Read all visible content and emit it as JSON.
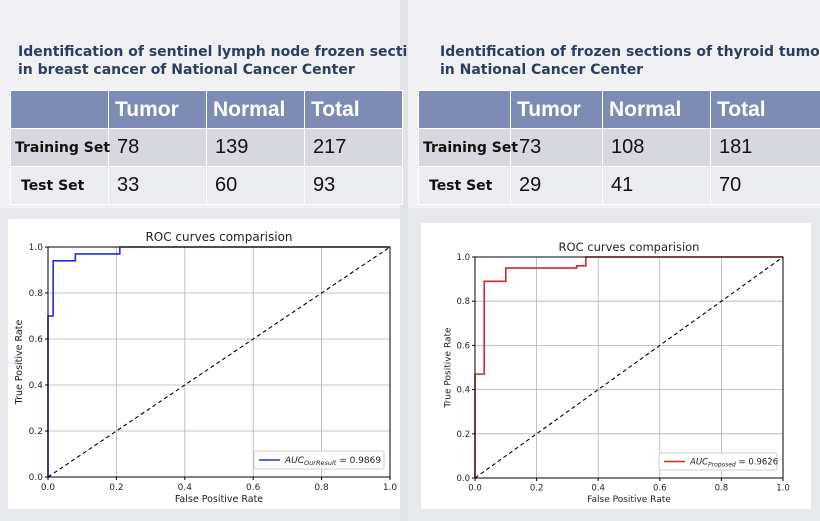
{
  "left": {
    "title_line1": "Identification of sentinel lymph node frozen section",
    "title_line2": "in breast cancer of National Cancer Center",
    "table": {
      "headers": [
        "",
        "Tumor",
        "Normal",
        "Total"
      ],
      "rows": [
        {
          "label": "Training Set",
          "cells": [
            "78",
            "139",
            "217"
          ]
        },
        {
          "label": "Test Set",
          "cells": [
            "33",
            "60",
            "93"
          ]
        }
      ]
    }
  },
  "right": {
    "title_line1": "Identification of frozen sections of thyroid tumor",
    "title_line2": "in National Cancer Center",
    "table": {
      "headers": [
        "",
        "Tumor",
        "Normal",
        "Total"
      ],
      "rows": [
        {
          "label": "Training Set",
          "cells": [
            "73",
            "108",
            "181"
          ]
        },
        {
          "label": "Test Set",
          "cells": [
            "29",
            "41",
            "70"
          ]
        }
      ]
    }
  },
  "colors": {
    "header_bg": "#7e8bb5",
    "title_text": "#2c3e5e",
    "left_curve": "#1f2fd6",
    "right_curve": "#d62728"
  },
  "chart_data": [
    {
      "type": "line",
      "title": "ROC curves comparision",
      "xlabel": "False Positive Rate",
      "ylabel": "True Positive Rate",
      "xlim": [
        0.0,
        1.0
      ],
      "ylim": [
        0.0,
        1.0
      ],
      "xticks": [
        "0.0",
        "0.2",
        "0.4",
        "0.6",
        "0.8",
        "1.0"
      ],
      "yticks": [
        "0.0",
        "0.2",
        "0.4",
        "0.6",
        "0.8",
        "1.0"
      ],
      "grid": true,
      "legend_position": "lower-right",
      "series": [
        {
          "legend_symbol": "AUC",
          "legend_subscript": "OurResult",
          "legend_value": " = 0.9869",
          "color": "#1f2fd6",
          "x": [
            0.0,
            0.0,
            0.015,
            0.015,
            0.08,
            0.08,
            0.21,
            0.21,
            1.0
          ],
          "y": [
            0.0,
            0.7,
            0.7,
            0.94,
            0.94,
            0.97,
            0.97,
            1.0,
            1.0
          ]
        },
        {
          "name": "Chance diagonal",
          "color": "#000000",
          "dashed": true,
          "x": [
            0.0,
            1.0
          ],
          "y": [
            0.0,
            1.0
          ]
        }
      ]
    },
    {
      "type": "line",
      "title": "ROC curves comparision",
      "xlabel": "False Positive Rate",
      "ylabel": "True Positive Rate",
      "xlim": [
        0.0,
        1.0
      ],
      "ylim": [
        0.0,
        1.0
      ],
      "xticks": [
        "0.0",
        "0.2",
        "0.4",
        "0.6",
        "0.8",
        "1.0"
      ],
      "yticks": [
        "0.0",
        "0.2",
        "0.4",
        "0.6",
        "0.8",
        "1.0"
      ],
      "grid": true,
      "legend_position": "lower-right",
      "series": [
        {
          "legend_symbol": "AUC",
          "legend_subscript": "Proposed",
          "legend_value": " = 0.9626",
          "color": "#d62728",
          "x": [
            0.0,
            0.0,
            0.03,
            0.03,
            0.1,
            0.1,
            0.33,
            0.33,
            0.36,
            0.36,
            1.0
          ],
          "y": [
            0.0,
            0.47,
            0.47,
            0.89,
            0.89,
            0.95,
            0.95,
            0.96,
            0.96,
            1.0,
            1.0
          ]
        },
        {
          "name": "Chance diagonal",
          "color": "#000000",
          "dashed": true,
          "x": [
            0.0,
            1.0
          ],
          "y": [
            0.0,
            1.0
          ]
        }
      ]
    }
  ]
}
